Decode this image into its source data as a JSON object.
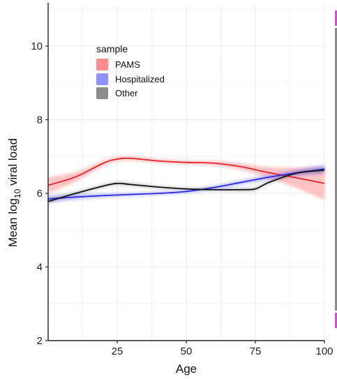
{
  "chart_data": {
    "type": "line",
    "xlabel": "Age",
    "ylabel_main": "Mean log",
    "ylabel_sub": "10",
    "ylabel_tail": " viral load",
    "xlim": [
      0,
      100
    ],
    "ylim": [
      2,
      11.1
    ],
    "x_ticks": [
      25,
      50,
      75,
      100
    ],
    "y_ticks": [
      2,
      4,
      6,
      8,
      10
    ],
    "grid": true,
    "legend": {
      "title": "sample",
      "position": "top-left",
      "entries": [
        {
          "label": "PAMS",
          "color": "#ff8c8c"
        },
        {
          "label": "Hospitalized",
          "color": "#9090ff"
        },
        {
          "label": "Other",
          "color": "#8c8c8c"
        }
      ]
    },
    "series": [
      {
        "name": "PAMS",
        "color": "#e0262e",
        "band_color": "#ff6e6e",
        "x": [
          0,
          10,
          20,
          25,
          30,
          40,
          50,
          60,
          70,
          80,
          90,
          100
        ],
        "y": [
          6.22,
          6.45,
          6.82,
          6.93,
          6.95,
          6.88,
          6.84,
          6.82,
          6.72,
          6.56,
          6.42,
          6.27
        ],
        "ci_half": [
          0.22,
          0.13,
          0.07,
          0.06,
          0.06,
          0.05,
          0.05,
          0.06,
          0.09,
          0.15,
          0.28,
          0.45
        ]
      },
      {
        "name": "Hospitalized",
        "color": "#2d2ae0",
        "band_color": "#6a6aff",
        "x": [
          0,
          10,
          20,
          30,
          40,
          50,
          60,
          70,
          80,
          90,
          100
        ],
        "y": [
          5.85,
          5.9,
          5.94,
          5.97,
          6.0,
          6.05,
          6.16,
          6.3,
          6.44,
          6.56,
          6.66
        ],
        "ci_half": [
          0.1,
          0.07,
          0.05,
          0.04,
          0.04,
          0.04,
          0.05,
          0.06,
          0.07,
          0.09,
          0.12
        ]
      },
      {
        "name": "Other",
        "color": "#111111",
        "band_color": "#666666",
        "x": [
          0,
          10,
          20,
          25,
          30,
          40,
          50,
          60,
          70,
          75,
          80,
          90,
          100
        ],
        "y": [
          5.78,
          6.0,
          6.2,
          6.27,
          6.24,
          6.17,
          6.12,
          6.1,
          6.1,
          6.12,
          6.3,
          6.55,
          6.63
        ],
        "ci_half": [
          0.05,
          0.04,
          0.04,
          0.04,
          0.04,
          0.03,
          0.03,
          0.03,
          0.04,
          0.04,
          0.04,
          0.05,
          0.06
        ]
      }
    ]
  },
  "colors": {
    "axis": "#222222",
    "grid": "#ebebeb",
    "right_strip": "#8a8a8a",
    "right_strip_accent": "#cf4fcf"
  }
}
